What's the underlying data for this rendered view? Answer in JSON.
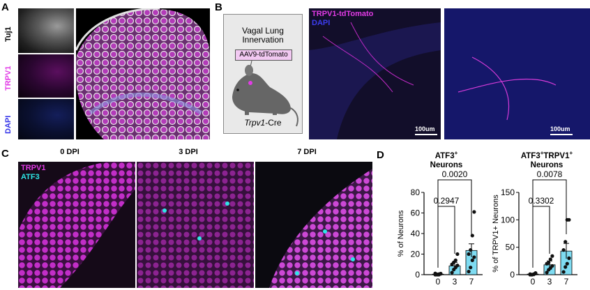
{
  "panels": {
    "A": {
      "label": "A",
      "channels": [
        {
          "label": "Tuj1",
          "color": "#ffffff"
        },
        {
          "label": "TRPV1",
          "color": "#e23be6"
        },
        {
          "label": "DAPI",
          "color": "#3535e8"
        }
      ]
    },
    "B": {
      "label": "B",
      "schematic": {
        "title_line1": "Vagal Lung",
        "title_line2": "Innervation",
        "virus": "AAV9-tdTomato",
        "mouse_line_italic": "Trpv1",
        "mouse_line_rest": "-Cre"
      },
      "legend_tdtomato": "TRPV1-tdTomato",
      "legend_dapi": "DAPI",
      "scalebar1": "100um",
      "scalebar2": "100um"
    },
    "C": {
      "label": "C",
      "dpi_labels": [
        "0 DPI",
        "3 DPI",
        "7 DPI"
      ],
      "legend_trpv1": "TRPV1",
      "legend_atf3": "ATF3"
    },
    "D": {
      "label": "D"
    }
  },
  "colors": {
    "magenta": "#e23be6",
    "blue": "#3535e8",
    "cyan": "#2ee6e6",
    "bar": "#7fdcf2"
  },
  "chart_data": [
    {
      "type": "bar",
      "title_line1": "ATF3",
      "title_sup1": "+",
      "title_line2": "Neurons",
      "ylabel": "% of Neurons",
      "categories": [
        "0",
        "3",
        "7"
      ],
      "values": [
        0.5,
        8.5,
        23.5
      ],
      "errors": [
        0.4,
        3.5,
        6.5
      ],
      "ylim": [
        0,
        80
      ],
      "yticks": [
        0,
        20,
        40,
        60,
        80
      ],
      "points": [
        [
          0,
          0,
          0.5,
          1,
          1.2,
          0.3,
          0,
          0.8
        ],
        [
          2,
          5,
          7,
          9,
          10,
          12,
          14,
          20
        ],
        [
          3,
          7,
          14,
          17,
          20,
          24,
          38,
          61
        ]
      ],
      "comparisons": [
        {
          "from": "0",
          "to": "3",
          "p": "0.2947"
        },
        {
          "from": "0",
          "to": "7",
          "p": "0.0020"
        }
      ]
    },
    {
      "type": "bar",
      "title_line1": "ATF3",
      "title_sup1": "+",
      "title_mid": "TRPV1",
      "title_sup2": "+",
      "title_line2": "Neurons",
      "ylabel": "% of TRPV1+ Neurons",
      "categories": [
        "0",
        "3",
        "7"
      ],
      "values": [
        1,
        18,
        43
      ],
      "errors": [
        0.8,
        7,
        14
      ],
      "ylim": [
        0,
        150
      ],
      "yticks": [
        0,
        50,
        100,
        150
      ],
      "points": [
        [
          0,
          0,
          1,
          2,
          1,
          0,
          0.5,
          3
        ],
        [
          4,
          9,
          12,
          16,
          20,
          22,
          28,
          34
        ],
        [
          5,
          14,
          20,
          30,
          45,
          60,
          100,
          100
        ]
      ],
      "comparisons": [
        {
          "from": "0",
          "to": "3",
          "p": "0.3302"
        },
        {
          "from": "0",
          "to": "7",
          "p": "0.0078"
        }
      ]
    }
  ]
}
